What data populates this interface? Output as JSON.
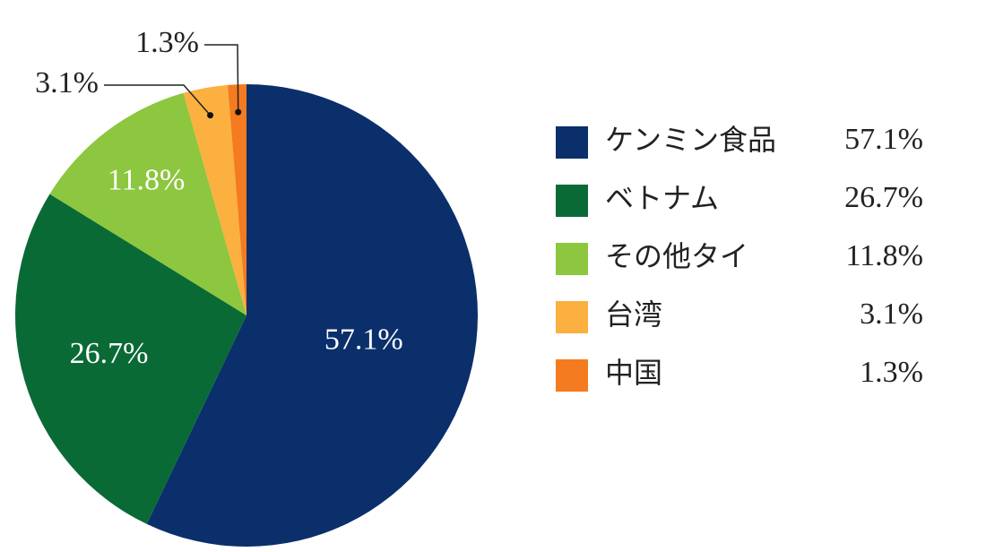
{
  "chart_data": {
    "type": "pie",
    "categories": [
      "ケンミン食品",
      "ベトナム",
      "その他タイ",
      "台湾",
      "中国"
    ],
    "values": [
      57.1,
      26.7,
      11.8,
      3.1,
      1.3
    ],
    "value_labels": [
      "57.1%",
      "26.7%",
      "11.8%",
      "3.1%",
      "1.3%"
    ],
    "colors": [
      "#0b2f6b",
      "#0a6a36",
      "#8dc63f",
      "#fbb040",
      "#f47b20"
    ],
    "legend": "right"
  }
}
